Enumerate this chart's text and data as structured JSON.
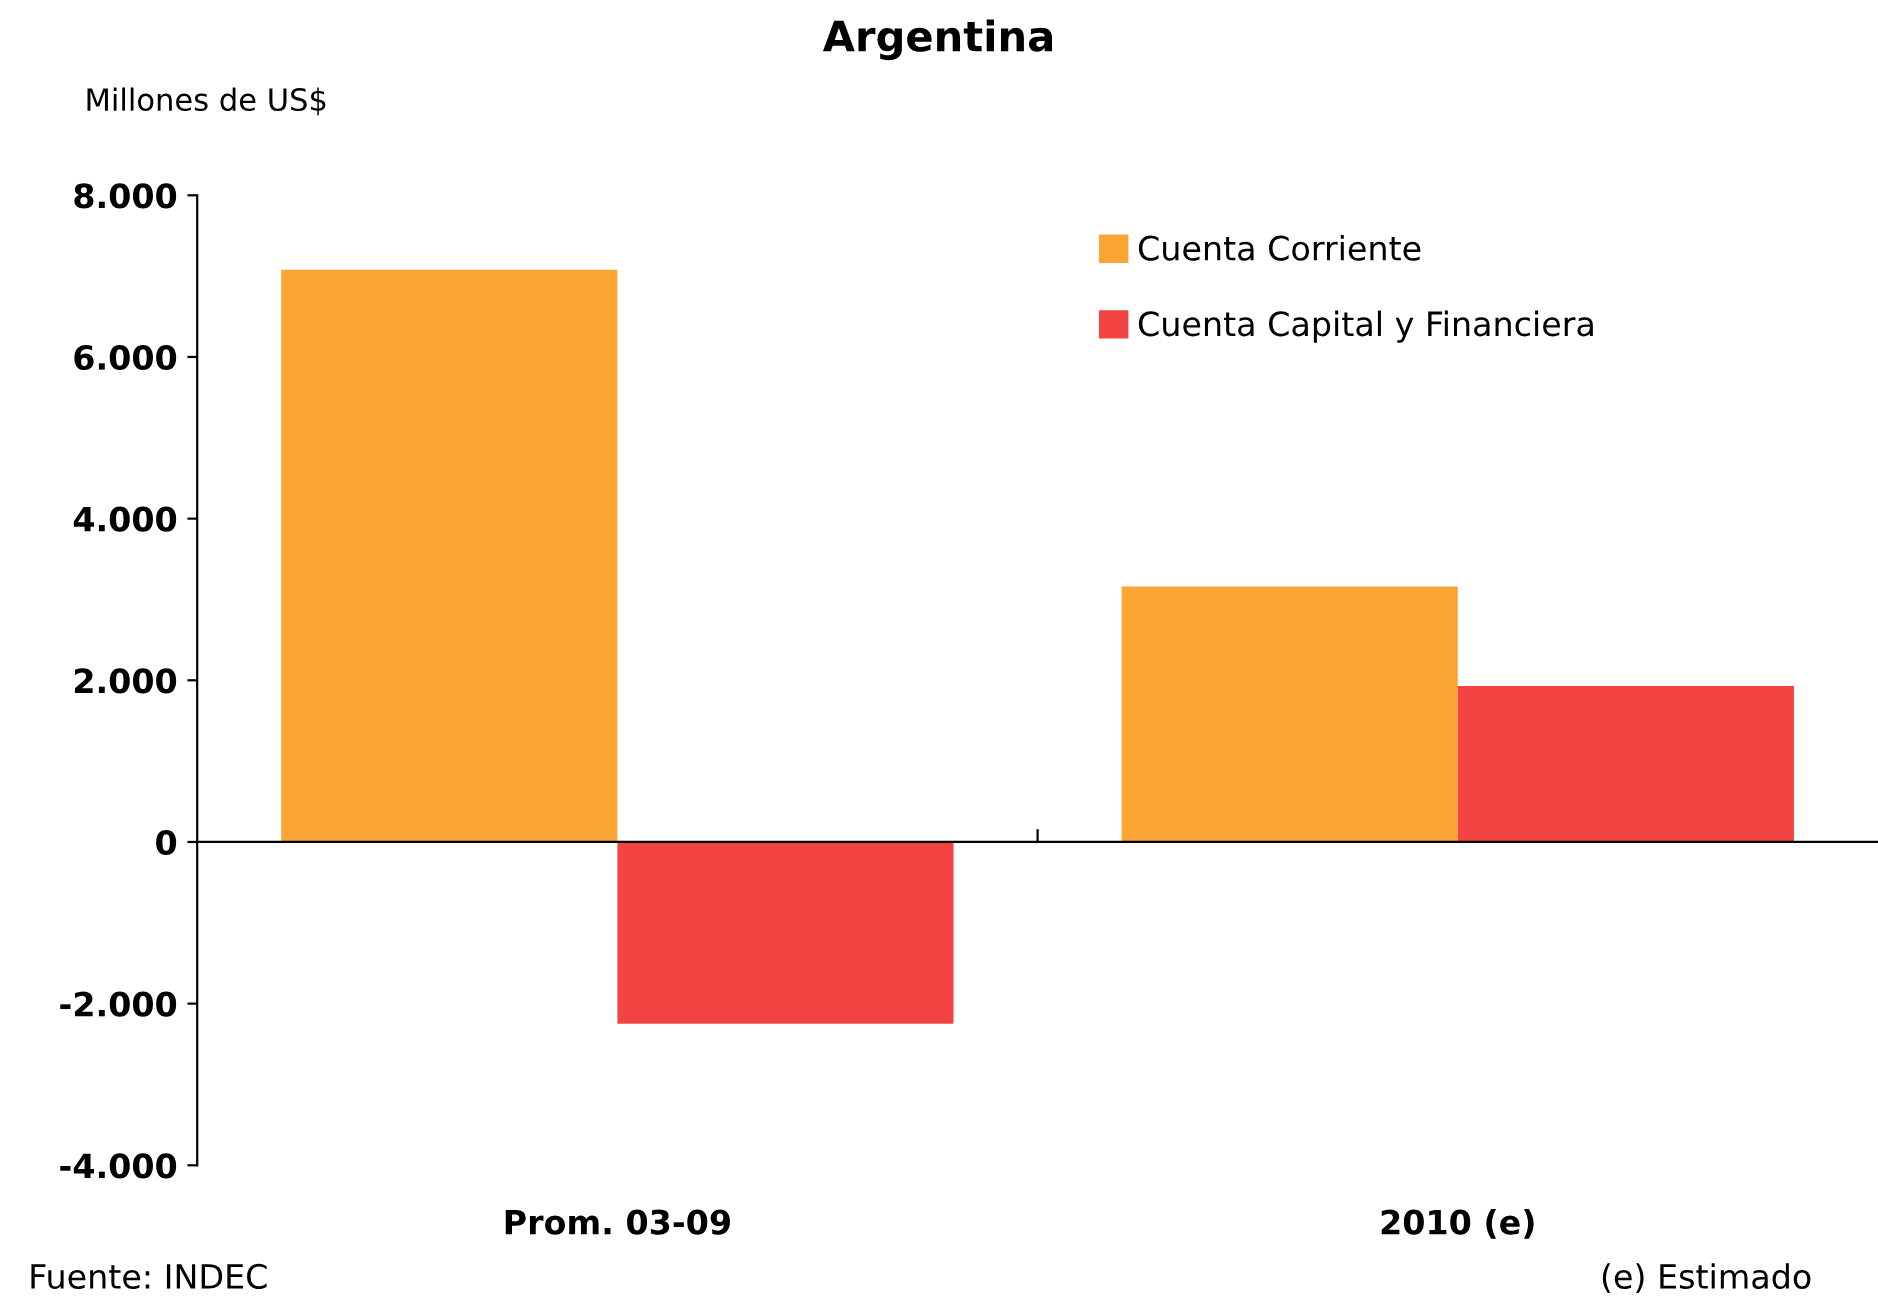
{
  "chart_data": {
    "type": "bar",
    "title": "Argentina",
    "ylabel": "Millones de US$",
    "categories": [
      "Prom. 03-09",
      "2010 (e)"
    ],
    "series": [
      {
        "name": "Cuenta Corriente",
        "color": "#fba535",
        "values": [
          7080,
          3160
        ]
      },
      {
        "name": "Cuenta Capital y Financiera",
        "color": "#f34444",
        "values": [
          -2250,
          1930
        ]
      }
    ],
    "ylim": [
      -4000,
      8000
    ],
    "yticks": [
      {
        "value": -4000,
        "label": "-4.000"
      },
      {
        "value": -2000,
        "label": "-2.000"
      },
      {
        "value": 0,
        "label": "0"
      },
      {
        "value": 2000,
        "label": "2.000"
      },
      {
        "value": 4000,
        "label": "4.000"
      },
      {
        "value": 6000,
        "label": "6.000"
      },
      {
        "value": 8000,
        "label": "8.000"
      }
    ],
    "legend": "top right",
    "annotations": [
      "Fuente: INDEC",
      "(e) Estimado"
    ]
  }
}
